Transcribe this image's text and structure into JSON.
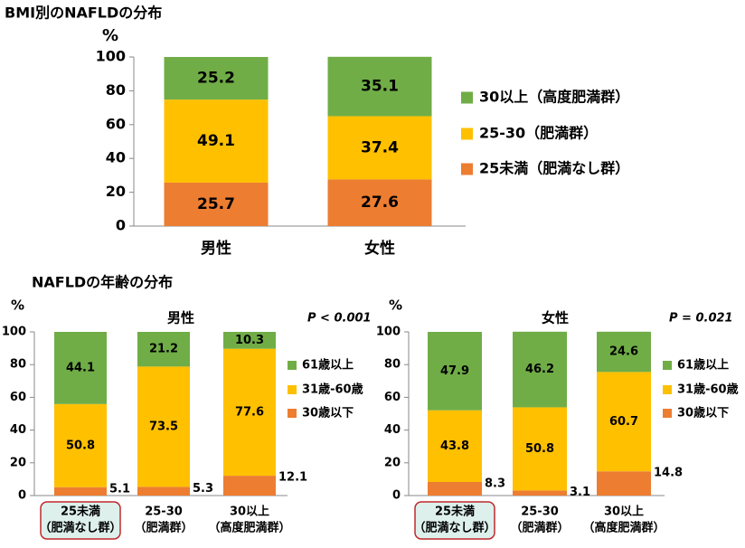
{
  "section_title": "NAFLDの年齢の分布",
  "chart_data": [
    {
      "type": "stacked_bar",
      "title": "BMI別のNAFLDの分布",
      "y_label": "%",
      "categories": [
        [
          "男性"
        ],
        [
          "女性"
        ]
      ],
      "ylim": [
        0,
        100
      ],
      "yticks": [
        0,
        20,
        40,
        60,
        80,
        100
      ],
      "series": [
        {
          "name": "25未満（肥満なし群）",
          "color": "#ED7D31",
          "values": [
            25.7,
            27.6
          ]
        },
        {
          "name": "25-30（肥満群）",
          "color": "#FFC000",
          "values": [
            49.1,
            37.4
          ]
        },
        {
          "name": "30以上（高度肥満群）",
          "color": "#70AD47",
          "values": [
            25.2,
            35.1
          ]
        }
      ]
    },
    {
      "type": "stacked_bar",
      "subtitle": "男性",
      "annotation": "P < 0.001",
      "y_label": "%",
      "categories": [
        [
          "25未満",
          "（肥満なし群）"
        ],
        [
          "25-30",
          "（肥満群）"
        ],
        [
          "30以上",
          "（高度肥満群）"
        ]
      ],
      "highlight_category": 0,
      "ylim": [
        0,
        100
      ],
      "yticks": [
        0,
        20,
        40,
        60,
        80,
        100
      ],
      "series": [
        {
          "name": "30歳以下",
          "color": "#ED7D31",
          "values": [
            5.1,
            5.3,
            12.1
          ],
          "label_outside": true
        },
        {
          "name": "31歳-60歳",
          "color": "#FFC000",
          "values": [
            50.8,
            73.5,
            77.6
          ]
        },
        {
          "name": "61歳以上",
          "color": "#70AD47",
          "values": [
            44.1,
            21.2,
            10.3
          ]
        }
      ]
    },
    {
      "type": "stacked_bar",
      "subtitle": "女性",
      "annotation": "P = 0.021",
      "y_label": "%",
      "categories": [
        [
          "25未満",
          "（肥満なし群）"
        ],
        [
          "25-30",
          "（肥満群）"
        ],
        [
          "30以上",
          "（高度肥満群）"
        ]
      ],
      "highlight_category": 0,
      "ylim": [
        0,
        100
      ],
      "yticks": [
        0,
        20,
        40,
        60,
        80,
        100
      ],
      "series": [
        {
          "name": "30歳以下",
          "color": "#ED7D31",
          "values": [
            8.3,
            3.1,
            14.8
          ],
          "label_outside": true
        },
        {
          "name": "31歳-60歳",
          "color": "#FFC000",
          "values": [
            43.8,
            50.8,
            60.7
          ]
        },
        {
          "name": "61歳以上",
          "color": "#70AD47",
          "values": [
            47.9,
            46.2,
            24.6
          ]
        }
      ]
    }
  ]
}
